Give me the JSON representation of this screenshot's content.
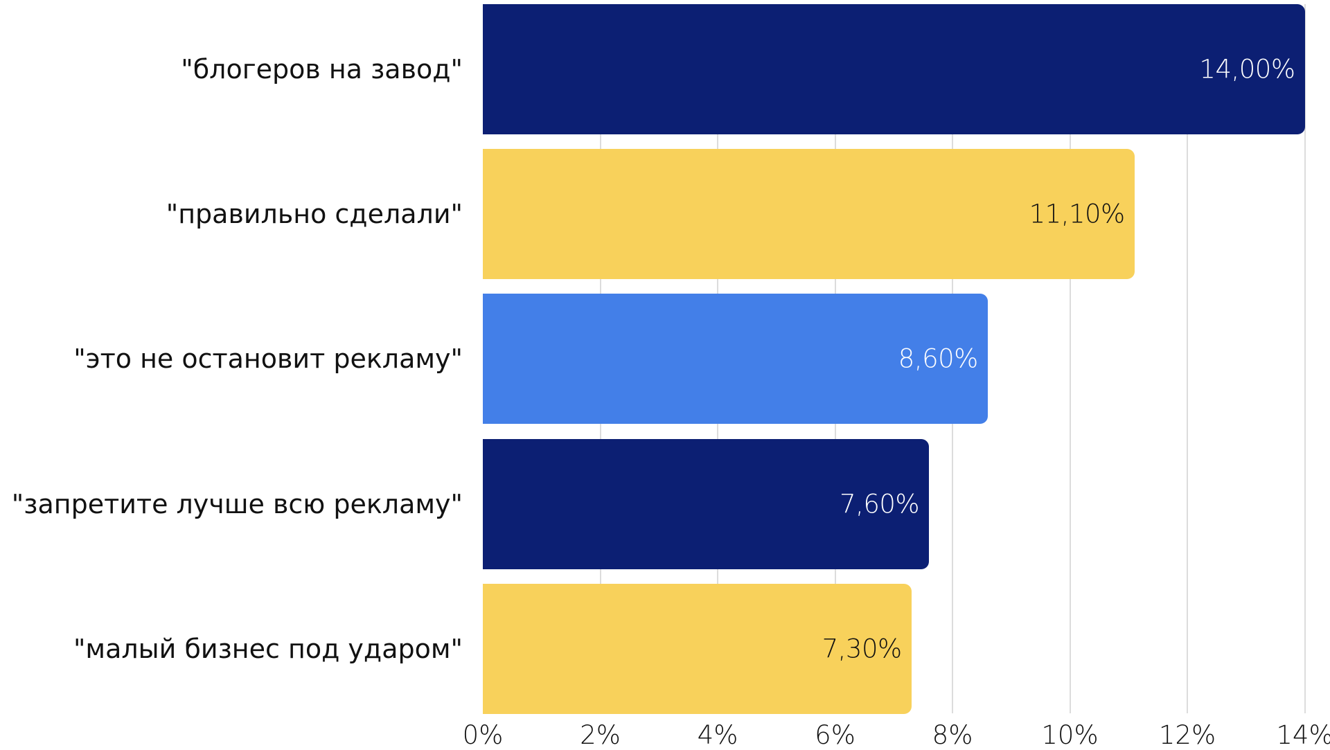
{
  "chart_data": {
    "type": "bar",
    "orientation": "horizontal",
    "title": "",
    "xlabel": "",
    "ylabel": "",
    "xlim": [
      0,
      14
    ],
    "x_ticks": [
      "0%",
      "2%",
      "4%",
      "6%",
      "8%",
      "10%",
      "12%",
      "14%"
    ],
    "grid": true,
    "categories": [
      "\"блогеров на завод\"",
      "\"правильно сделали\"",
      "\"это не остановит рекламу\"",
      "\"запретите лучше всю рекламу\"",
      "\"малый бизнес под ударом\""
    ],
    "values": [
      14.0,
      11.1,
      8.6,
      7.6,
      7.3
    ],
    "value_labels": [
      "14,00%",
      "11,10%",
      "8,60%",
      "7,60%",
      "7,30%"
    ],
    "bar_colors": [
      "#0C1F73",
      "#F8D15B",
      "#437FE8",
      "#0C1F73",
      "#F8D15B"
    ],
    "label_colors": [
      "#ffffff",
      "#111111",
      "#ffffff",
      "#ffffff",
      "#111111"
    ]
  }
}
